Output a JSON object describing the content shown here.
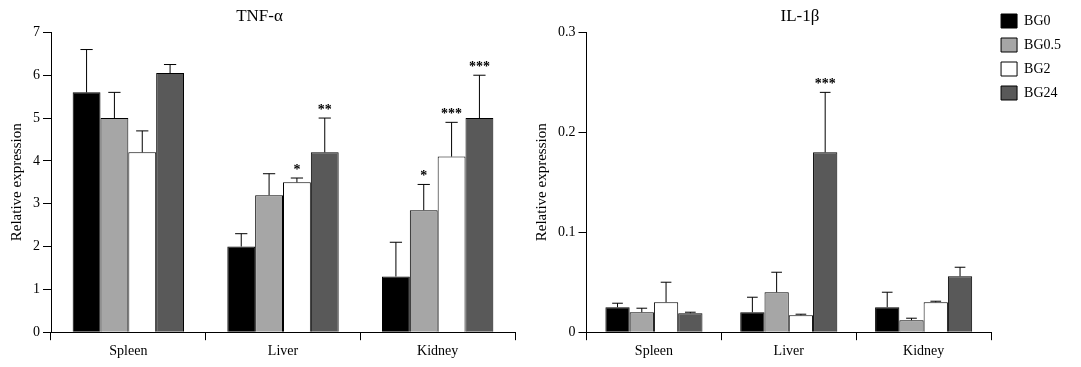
{
  "chart_data": [
    {
      "type": "bar",
      "title": "TNF-α",
      "y_label": "Relative expression",
      "categories": [
        "Spleen",
        "Liver",
        "Kidney"
      ],
      "series": [
        {
          "name": "BG0",
          "color": "#000000",
          "values": [
            5.6,
            2.0,
            1.3
          ],
          "errors": [
            1.0,
            0.3,
            0.8
          ],
          "significance": [
            null,
            null,
            null
          ]
        },
        {
          "name": "BG0.5",
          "color": "#a6a6a6",
          "values": [
            5.0,
            3.2,
            2.85
          ],
          "errors": [
            0.6,
            0.5,
            0.6
          ],
          "significance": [
            null,
            null,
            "*"
          ]
        },
        {
          "name": "BG2",
          "color": "#ffffff",
          "values": [
            4.2,
            3.5,
            4.1
          ],
          "errors": [
            0.5,
            0.1,
            0.8
          ],
          "significance": [
            null,
            "*",
            "***"
          ]
        },
        {
          "name": "BG24",
          "color": "#595959",
          "values": [
            6.05,
            4.2,
            5.0
          ],
          "errors": [
            0.2,
            0.8,
            1.0
          ],
          "significance": [
            null,
            "**",
            "***"
          ]
        }
      ],
      "ylim": [
        0,
        7
      ],
      "yticks": [
        0,
        1,
        2,
        3,
        4,
        5,
        6,
        7
      ],
      "grid": false
    },
    {
      "type": "bar",
      "title": "IL-1β",
      "y_label": "Relative expression",
      "categories": [
        "Spleen",
        "Liver",
        "Kidney"
      ],
      "series": [
        {
          "name": "BG0",
          "color": "#000000",
          "values": [
            0.025,
            0.02,
            0.025
          ],
          "errors": [
            0.004,
            0.015,
            0.015
          ],
          "significance": [
            null,
            null,
            null
          ]
        },
        {
          "name": "BG0.5",
          "color": "#a6a6a6",
          "values": [
            0.02,
            0.04,
            0.012
          ],
          "errors": [
            0.004,
            0.02,
            0.002
          ],
          "significance": [
            null,
            null,
            null
          ]
        },
        {
          "name": "BG2",
          "color": "#ffffff",
          "values": [
            0.03,
            0.017,
            0.03
          ],
          "errors": [
            0.02,
            0.001,
            0.001
          ],
          "significance": [
            null,
            null,
            null
          ]
        },
        {
          "name": "BG24",
          "color": "#595959",
          "values": [
            0.019,
            0.18,
            0.056
          ],
          "errors": [
            0.001,
            0.06,
            0.009
          ],
          "significance": [
            null,
            "***",
            null
          ]
        }
      ],
      "ylim": [
        0,
        0.3
      ],
      "yticks": [
        0,
        0.1,
        0.2,
        0.3
      ],
      "grid": false,
      "legend": "top-right"
    }
  ]
}
